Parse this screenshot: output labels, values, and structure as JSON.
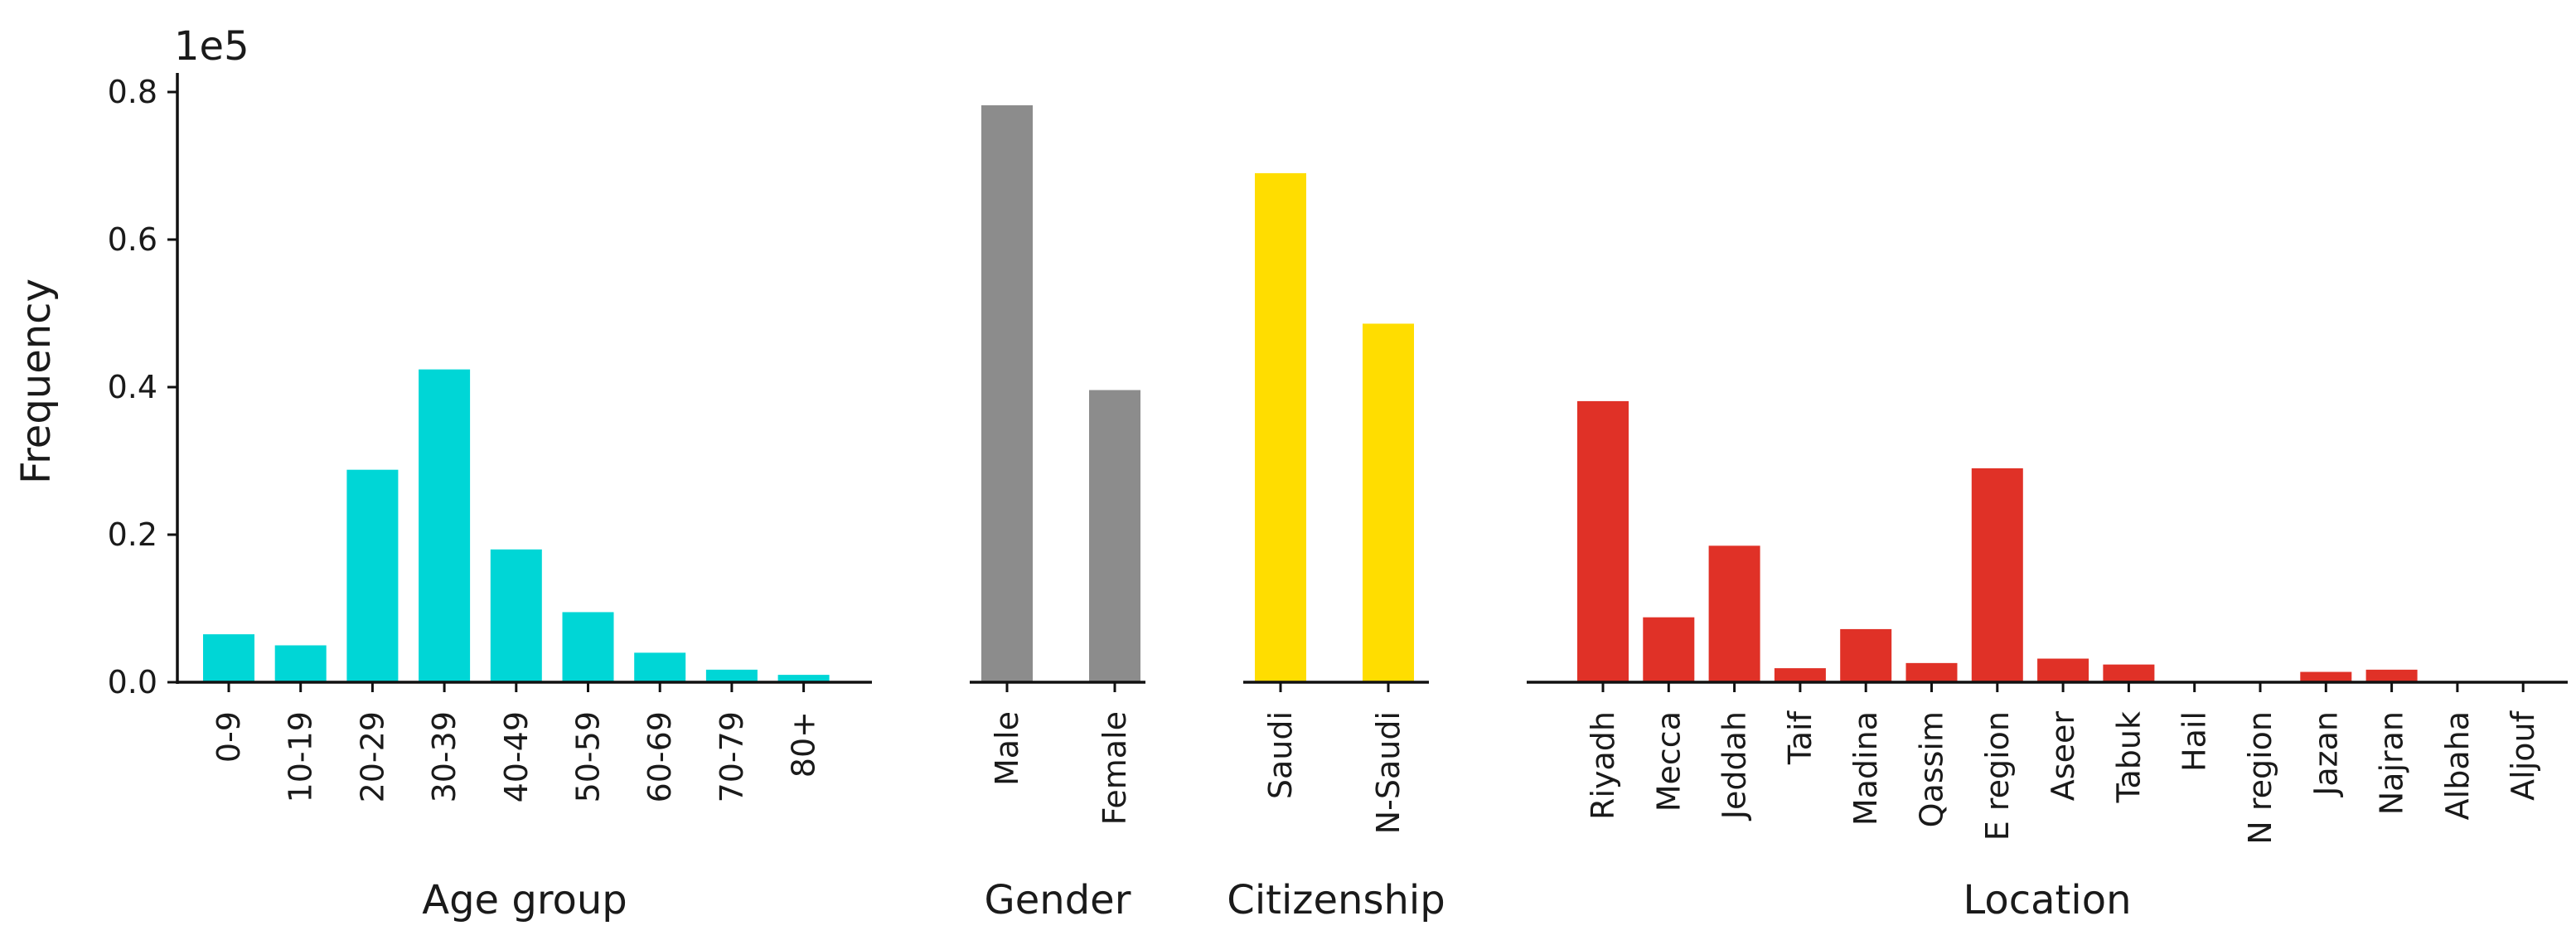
{
  "chart_data": {
    "type": "bar",
    "ylabel": "Frequency",
    "y_scale_label": "1e5",
    "ylim": [
      0,
      0.82
    ],
    "y_ticks": [
      0.0,
      0.2,
      0.4,
      0.6,
      0.8
    ],
    "y_tick_labels": [
      "0.0",
      "0.2",
      "0.4",
      "0.6",
      "0.8"
    ],
    "grid": false,
    "panels": [
      {
        "xlabel": "Age group",
        "color": "#00d6d6",
        "categories": [
          "0-9",
          "10-19",
          "20-29",
          "30-39",
          "40-49",
          "50-59",
          "60-69",
          "70-79",
          "80+"
        ],
        "values": [
          0.065,
          0.05,
          0.288,
          0.424,
          0.18,
          0.095,
          0.04,
          0.017,
          0.01
        ]
      },
      {
        "xlabel": "Gender",
        "color": "#8c8c8c",
        "categories": [
          "Male",
          "Female"
        ],
        "values": [
          0.782,
          0.396
        ]
      },
      {
        "xlabel": "Citizenship",
        "color": "#ffdd00",
        "categories": [
          "Saudi",
          "N-Saudi"
        ],
        "values": [
          0.69,
          0.486
        ]
      },
      {
        "xlabel": "Location",
        "color": "#e03127",
        "categories": [
          "Riyadh",
          "Mecca",
          "Jeddah",
          "Taif",
          "Madina",
          "Qassim",
          "E region",
          "Aseer",
          "Tabuk",
          "Hail",
          "N region",
          "Jazan",
          "Najran",
          "Albaha",
          "Aljouf"
        ],
        "values": [
          0.381,
          0.088,
          0.185,
          0.019,
          0.072,
          0.026,
          0.29,
          0.032,
          0.024,
          0.001,
          0.001,
          0.014,
          0.017,
          0.0,
          0.0
        ]
      }
    ]
  }
}
